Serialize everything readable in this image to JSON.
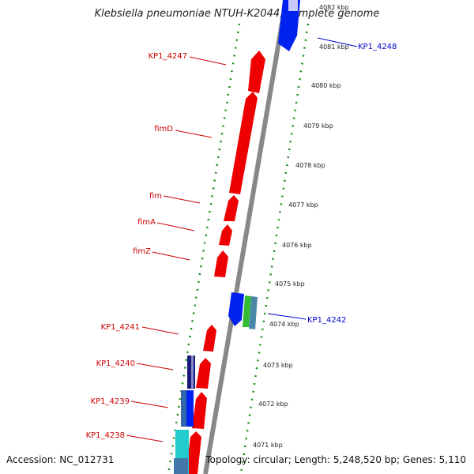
{
  "title": "Klebsiella pneumoniae NTUH-K2044, complete genome",
  "accession": "Accession: NC_012731",
  "summary": "Topology: circular; Length: 5,248,520 bp; Genes: 5,110",
  "colors": {
    "forward_gene": "#ee0000",
    "reverse_gene": "#0022ee",
    "backbone": "#888888",
    "tick_dots": "#1a8a1a",
    "label_red": "#cc0000",
    "label_blue": "#0000cc"
  },
  "left_labels": [
    {
      "text": "KP1_4247"
    },
    {
      "text": "fimD"
    },
    {
      "text": "fim"
    },
    {
      "text": "fimA"
    },
    {
      "text": "fimZ"
    },
    {
      "text": "KP1_4241"
    },
    {
      "text": "KP1_4240"
    },
    {
      "text": "KP1_4239"
    },
    {
      "text": "KP1_4238"
    }
  ],
  "right_labels": [
    {
      "text": "KP1_4248"
    },
    {
      "text": "KP1_4242"
    }
  ],
  "ticks": [
    "4082 kbp",
    "4081 kbp",
    "4080 kbp",
    "4079 kbp",
    "4078 kbp",
    "4077 kbp",
    "4076 kbp",
    "4075 kbp",
    "4074 kbp",
    "4073 kbp",
    "4072 kbp",
    "4071 kbp"
  ]
}
